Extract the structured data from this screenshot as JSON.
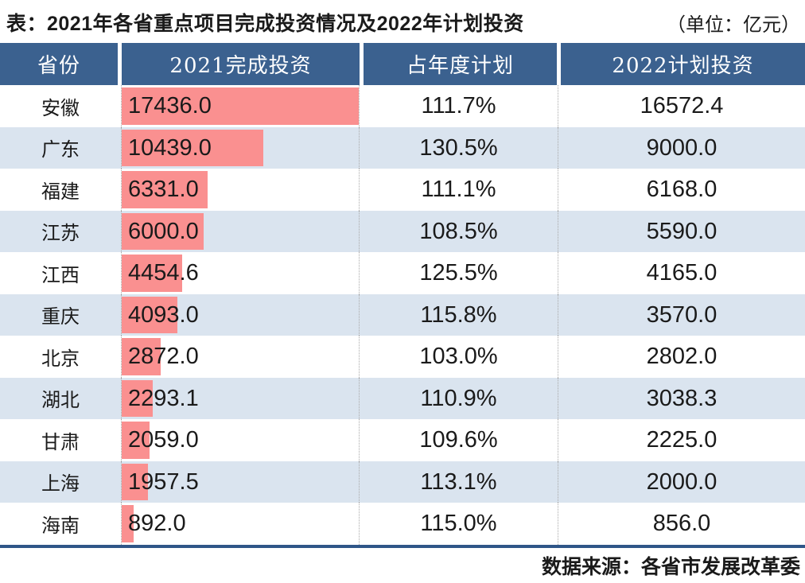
{
  "header": {
    "title": "表：2021年各省重点项目完成投资情况及2022年计划投资",
    "unit": "（单位：亿元）"
  },
  "footer": {
    "source": "数据来源：各省市发展改革委"
  },
  "colors": {
    "header_bg": "#3B618F",
    "alt_row": "#DAE4EF",
    "bar": "#FA9090",
    "bottom_line": "#2F5688",
    "dotted_separator": "#A9A9A9",
    "text": "#1A1A1A",
    "header_text": "#FFFFFF"
  },
  "chart_data": {
    "type": "table",
    "title": "表：2021年各省重点项目完成投资情况及2022年计划投资",
    "unit": "亿元",
    "columns": [
      "省份",
      "2021完成投资",
      "占年度计划",
      "2022计划投资"
    ],
    "bar_column": "2021完成投资",
    "bar_max": 17436.0,
    "rows": [
      {
        "province": "安徽",
        "completed_2021": "17436.0",
        "completed_2021_value": 17436.0,
        "pct_of_plan": "111.7%",
        "plan_2022": "16572.4"
      },
      {
        "province": "广东",
        "completed_2021": "10439.0",
        "completed_2021_value": 10439.0,
        "pct_of_plan": "130.5%",
        "plan_2022": "9000.0"
      },
      {
        "province": "福建",
        "completed_2021": "6331.0",
        "completed_2021_value": 6331.0,
        "pct_of_plan": "111.1%",
        "plan_2022": "6168.0"
      },
      {
        "province": "江苏",
        "completed_2021": "6000.0",
        "completed_2021_value": 6000.0,
        "pct_of_plan": "108.5%",
        "plan_2022": "5590.0"
      },
      {
        "province": "江西",
        "completed_2021": "4454.6",
        "completed_2021_value": 4454.6,
        "pct_of_plan": "125.5%",
        "plan_2022": "4165.0"
      },
      {
        "province": "重庆",
        "completed_2021": "4093.0",
        "completed_2021_value": 4093.0,
        "pct_of_plan": "115.8%",
        "plan_2022": "3570.0"
      },
      {
        "province": "北京",
        "completed_2021": "2872.0",
        "completed_2021_value": 2872.0,
        "pct_of_plan": "103.0%",
        "plan_2022": "2802.0"
      },
      {
        "province": "湖北",
        "completed_2021": "2293.1",
        "completed_2021_value": 2293.1,
        "pct_of_plan": "110.9%",
        "plan_2022": "3038.3"
      },
      {
        "province": "甘肃",
        "completed_2021": "2059.0",
        "completed_2021_value": 2059.0,
        "pct_of_plan": "109.6%",
        "plan_2022": "2225.0"
      },
      {
        "province": "上海",
        "completed_2021": "1957.5",
        "completed_2021_value": 1957.5,
        "pct_of_plan": "113.1%",
        "plan_2022": "2000.0"
      },
      {
        "province": "海南",
        "completed_2021": "892.0",
        "completed_2021_value": 892.0,
        "pct_of_plan": "115.0%",
        "plan_2022": "856.0"
      }
    ]
  }
}
